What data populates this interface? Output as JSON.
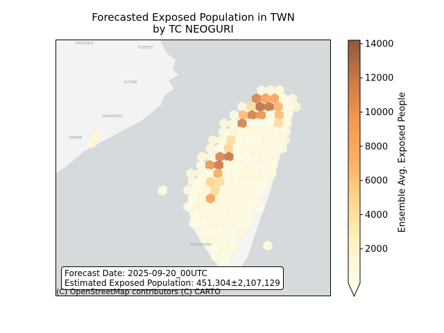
{
  "title": {
    "line1": "Forecasted Exposed Population in TWN",
    "line2": "by TC NEOGURI"
  },
  "info": {
    "forecast_date": "Forecast Date: 2025-09-20_00UTC",
    "estimated_population": "Estimated Exposed Population: 451,304±2,107,129"
  },
  "attribution": "(C) OpenStreetMap contributors (C) CARTO",
  "map_labels": {
    "province": "PROVINCE",
    "fuzhou": "FUZHOU",
    "putian": "PUTIAN",
    "quanzhou": "QUANZHOU",
    "xiamen": "XIAMEN",
    "kaohsiung": "KAOHSIUNG"
  },
  "chart_data": {
    "type": "heatmap",
    "colorbar": {
      "label": "Ensemble Avg. Exposed People",
      "ticks": [
        2000,
        4000,
        6000,
        8000,
        10000,
        12000,
        14000
      ],
      "tick_labels": [
        "2000",
        "4000",
        "6000",
        "8000",
        "10000",
        "12000",
        "14000"
      ],
      "range": [
        0,
        14200
      ],
      "extend": "min",
      "colormap": "YlOrBr-like",
      "colors": [
        "#fffde8",
        "#fef3c0",
        "#fed98e",
        "#fdb163",
        "#f49a4f",
        "#cc7a45",
        "#8c5a3f"
      ]
    }
  }
}
